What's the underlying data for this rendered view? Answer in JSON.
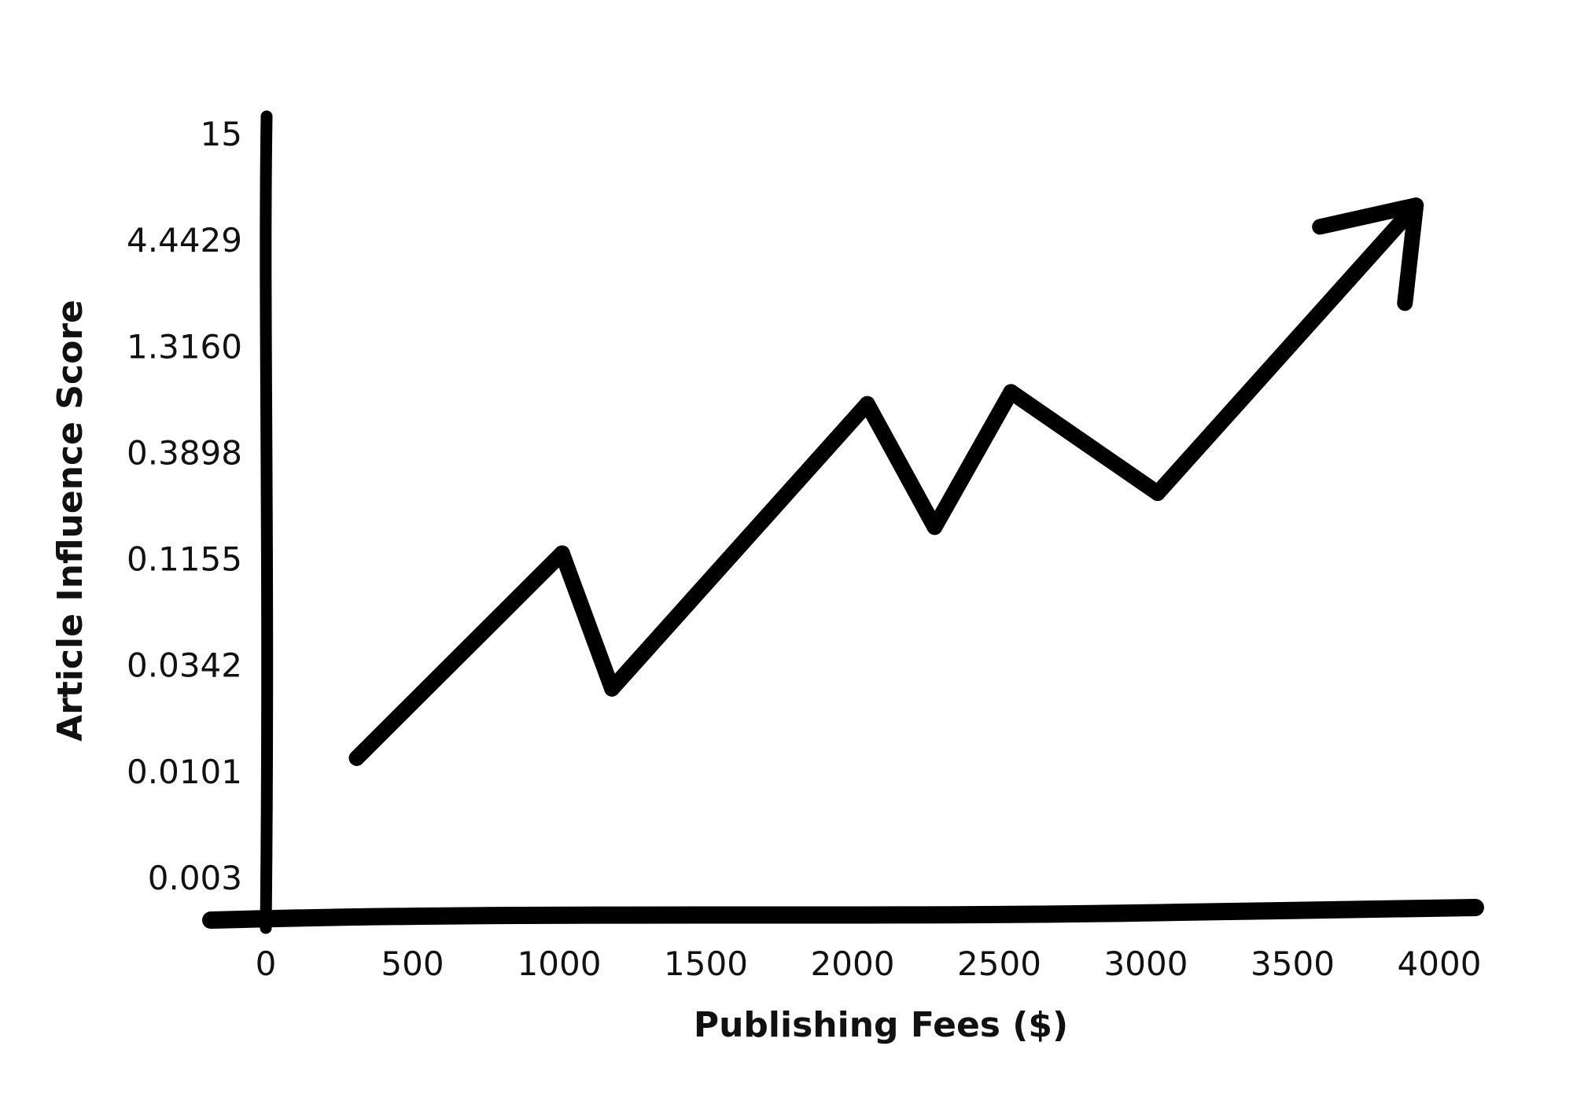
{
  "chart_data": {
    "type": "line",
    "title": "",
    "xlabel": "Publishing Fees ($)",
    "ylabel": "Article Influence Score",
    "x_ticks": [
      "0",
      "500",
      "1000",
      "1500",
      "2000",
      "2500",
      "3000",
      "3500",
      "4000"
    ],
    "y_ticks": [
      "0.003",
      "0.0101",
      "0.0342",
      "0.1155",
      "0.3898",
      "1.3160",
      "4.4429",
      "15"
    ],
    "y_scale": "log",
    "xlim": [
      0,
      4000
    ],
    "ylim": [
      0.003,
      15
    ],
    "grid": false,
    "legend": "none",
    "series": [
      {
        "x": [
          310,
          1010,
          1180,
          2050,
          2280,
          2540,
          3040,
          3920
        ],
        "y": [
          0.0118,
          0.123,
          0.0261,
          0.68,
          0.166,
          0.78,
          0.245,
          6.6
        ]
      }
    ],
    "end_marker": "arrow",
    "line_color": "#000000"
  }
}
